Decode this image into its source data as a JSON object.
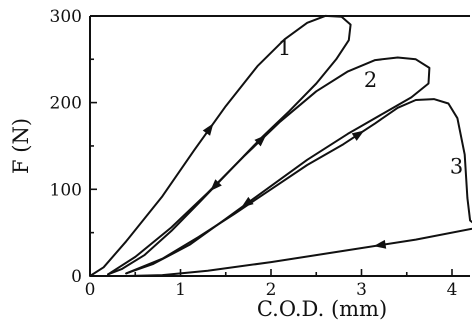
{
  "chart_data": {
    "type": "line",
    "title": "",
    "xlabel": "C.O.D. (mm)",
    "ylabel": "F (N)",
    "xlim": [
      0,
      4.3
    ],
    "ylim": [
      0,
      300
    ],
    "x_ticks": [
      "0",
      "1",
      "2",
      "3",
      "4"
    ],
    "x_tick_values": [
      0,
      1,
      2,
      3,
      4
    ],
    "y_ticks": [
      "0",
      "100",
      "200",
      "300"
    ],
    "y_tick_values": [
      0,
      100,
      200,
      300
    ],
    "grid": false,
    "series": [
      {
        "name": "1",
        "points": [
          [
            0.0,
            0
          ],
          [
            0.15,
            10
          ],
          [
            0.4,
            40
          ],
          [
            0.8,
            92
          ],
          [
            1.15,
            145
          ],
          [
            1.5,
            196
          ],
          [
            1.85,
            242
          ],
          [
            2.15,
            273
          ],
          [
            2.4,
            292
          ],
          [
            2.6,
            300
          ],
          [
            2.78,
            299
          ],
          [
            2.88,
            290
          ],
          [
            2.86,
            272
          ],
          [
            2.72,
            250
          ],
          [
            2.5,
            222
          ],
          [
            2.2,
            190
          ],
          [
            1.9,
            160
          ],
          [
            1.55,
            122
          ],
          [
            1.2,
            84
          ],
          [
            0.9,
            52
          ],
          [
            0.6,
            24
          ],
          [
            0.35,
            8
          ],
          [
            0.2,
            2
          ]
        ]
      },
      {
        "name": "2",
        "points": [
          [
            0.2,
            2
          ],
          [
            0.5,
            22
          ],
          [
            0.9,
            56
          ],
          [
            1.3,
            96
          ],
          [
            1.7,
            138
          ],
          [
            2.1,
            178
          ],
          [
            2.5,
            213
          ],
          [
            2.85,
            236
          ],
          [
            3.15,
            249
          ],
          [
            3.4,
            252
          ],
          [
            3.6,
            250
          ],
          [
            3.75,
            240
          ],
          [
            3.74,
            222
          ],
          [
            3.55,
            206
          ],
          [
            3.25,
            188
          ],
          [
            2.85,
            164
          ],
          [
            2.4,
            134
          ],
          [
            1.95,
            100
          ],
          [
            1.5,
            66
          ],
          [
            1.1,
            36
          ],
          [
            0.7,
            14
          ],
          [
            0.4,
            3
          ]
        ]
      },
      {
        "name": "3",
        "points": [
          [
            0.4,
            3
          ],
          [
            0.8,
            20
          ],
          [
            1.2,
            45
          ],
          [
            1.6,
            72
          ],
          [
            2.0,
            100
          ],
          [
            2.4,
            128
          ],
          [
            2.8,
            152
          ],
          [
            3.15,
            176
          ],
          [
            3.4,
            194
          ],
          [
            3.6,
            203
          ],
          [
            3.8,
            204
          ],
          [
            3.96,
            199
          ],
          [
            4.06,
            182
          ],
          [
            4.14,
            140
          ],
          [
            4.17,
            90
          ],
          [
            4.2,
            64
          ],
          [
            4.3,
            56
          ],
          [
            3.6,
            42
          ],
          [
            2.8,
            29
          ],
          [
            2.0,
            16
          ],
          [
            1.3,
            6
          ],
          [
            0.8,
            1
          ],
          [
            0.4,
            0
          ]
        ]
      }
    ]
  }
}
